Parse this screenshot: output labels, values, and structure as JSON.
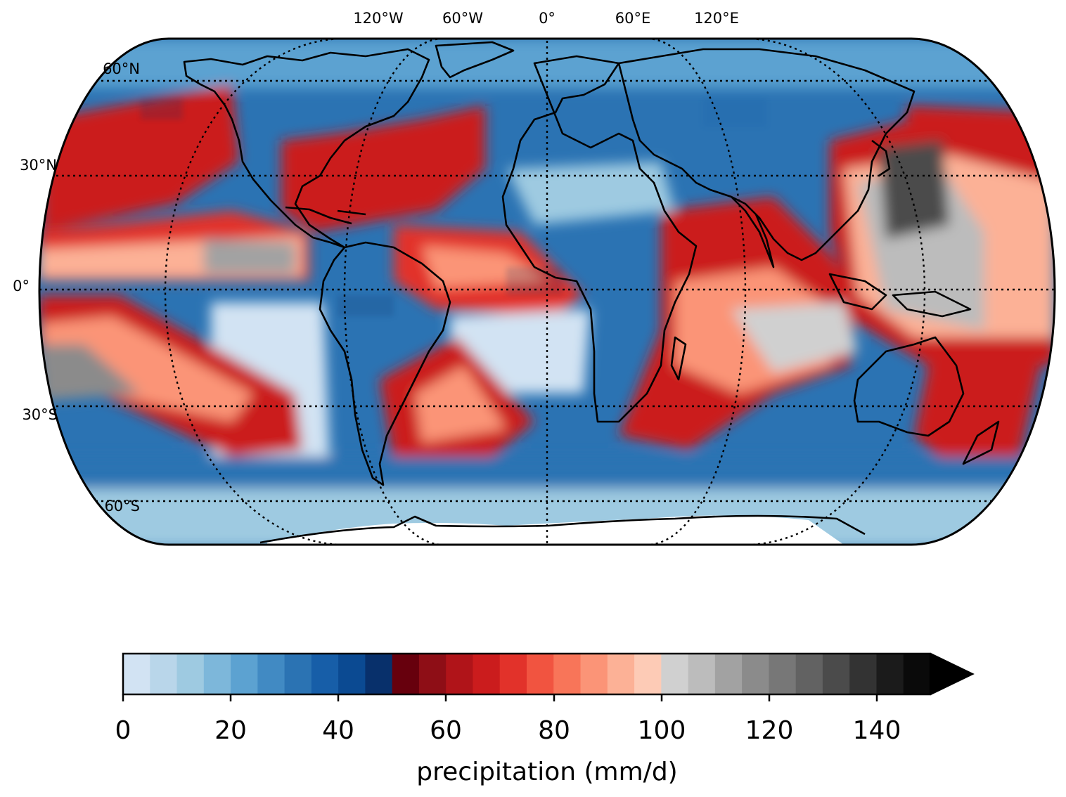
{
  "lon_labels": [
    "120°W",
    "60°W",
    "0°",
    "60°E",
    "120°E"
  ],
  "lat_labels": [
    "60°N",
    "30°N",
    "0°",
    "30°S",
    "60°S"
  ],
  "colorbar": {
    "label": "precipitation (mm/d)",
    "tick_labels": [
      "0",
      "20",
      "40",
      "60",
      "80",
      "100",
      "120",
      "140"
    ],
    "min": 0,
    "max": 150,
    "step": 5,
    "extend": "max",
    "extend_color": "#000000",
    "colors": [
      "#d2e3f3",
      "#b9d6ea",
      "#9ecae1",
      "#7db7da",
      "#5ca2d1",
      "#418ac3",
      "#2b73b3",
      "#175ea8",
      "#0b4a92",
      "#08306b",
      "#67000d",
      "#8e0e16",
      "#b01419",
      "#cb1c1d",
      "#e2322a",
      "#f15440",
      "#f87559",
      "#fb9477",
      "#fcb196",
      "#fdcbb6",
      "#d0d0d0",
      "#bcbcbc",
      "#a2a2a2",
      "#8b8b8b",
      "#777777",
      "#626262",
      "#4b4b4b",
      "#333333",
      "#1b1b1b",
      "#0a0a0a"
    ]
  },
  "map": {
    "projection": "Equal Earth",
    "field_colors": {
      "low": "#d2e3f3",
      "mid_low": "#5ca2d1",
      "land": "#2b73b3",
      "heavy": "#cb1c1d",
      "very_heavy": "#fb9477",
      "extreme": "#bcbcbc",
      "max": "#0a0a0a",
      "ice": "#ffffff"
    }
  }
}
